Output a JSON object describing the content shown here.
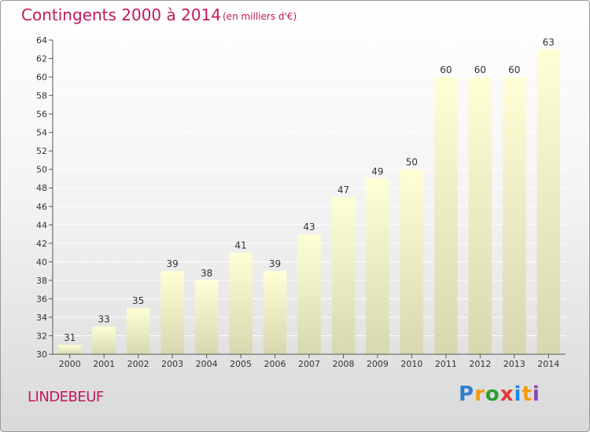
{
  "header": {
    "title": "Contingents 2000 à 2014",
    "subtitle": "(en milliers d'€)"
  },
  "footer": {
    "commune": "LINDEBEUF",
    "brand": {
      "letters": [
        "P",
        "r",
        "o",
        "x",
        "i",
        "t",
        "i"
      ],
      "colors": [
        "#2e7fd1",
        "#f39c12",
        "#2ca02c",
        "#e53935",
        "#1e88e5",
        "#f39c12",
        "#8e44ad"
      ]
    }
  },
  "chart_data": {
    "type": "bar",
    "title": "Contingents 2000 à 2014",
    "subtitle": "(en milliers d'€)",
    "categories": [
      "2000",
      "2001",
      "2002",
      "2003",
      "2004",
      "2005",
      "2006",
      "2007",
      "2008",
      "2009",
      "2010",
      "2011",
      "2012",
      "2013",
      "2014"
    ],
    "values": [
      31,
      33,
      35,
      39,
      38,
      41,
      39,
      43,
      47,
      49,
      50,
      60,
      60,
      60,
      63
    ],
    "ylim": [
      30,
      64
    ],
    "yticks": [
      30,
      32,
      34,
      36,
      38,
      40,
      42,
      44,
      46,
      48,
      50,
      52,
      54,
      56,
      58,
      60,
      62,
      64
    ],
    "grid": true,
    "legend": "none",
    "colors": {
      "bar_top": "#ffffd6",
      "bar_bottom": "#d8d8b0",
      "grid": "#ffffff",
      "axis": "#555555",
      "text": "#333333"
    }
  }
}
